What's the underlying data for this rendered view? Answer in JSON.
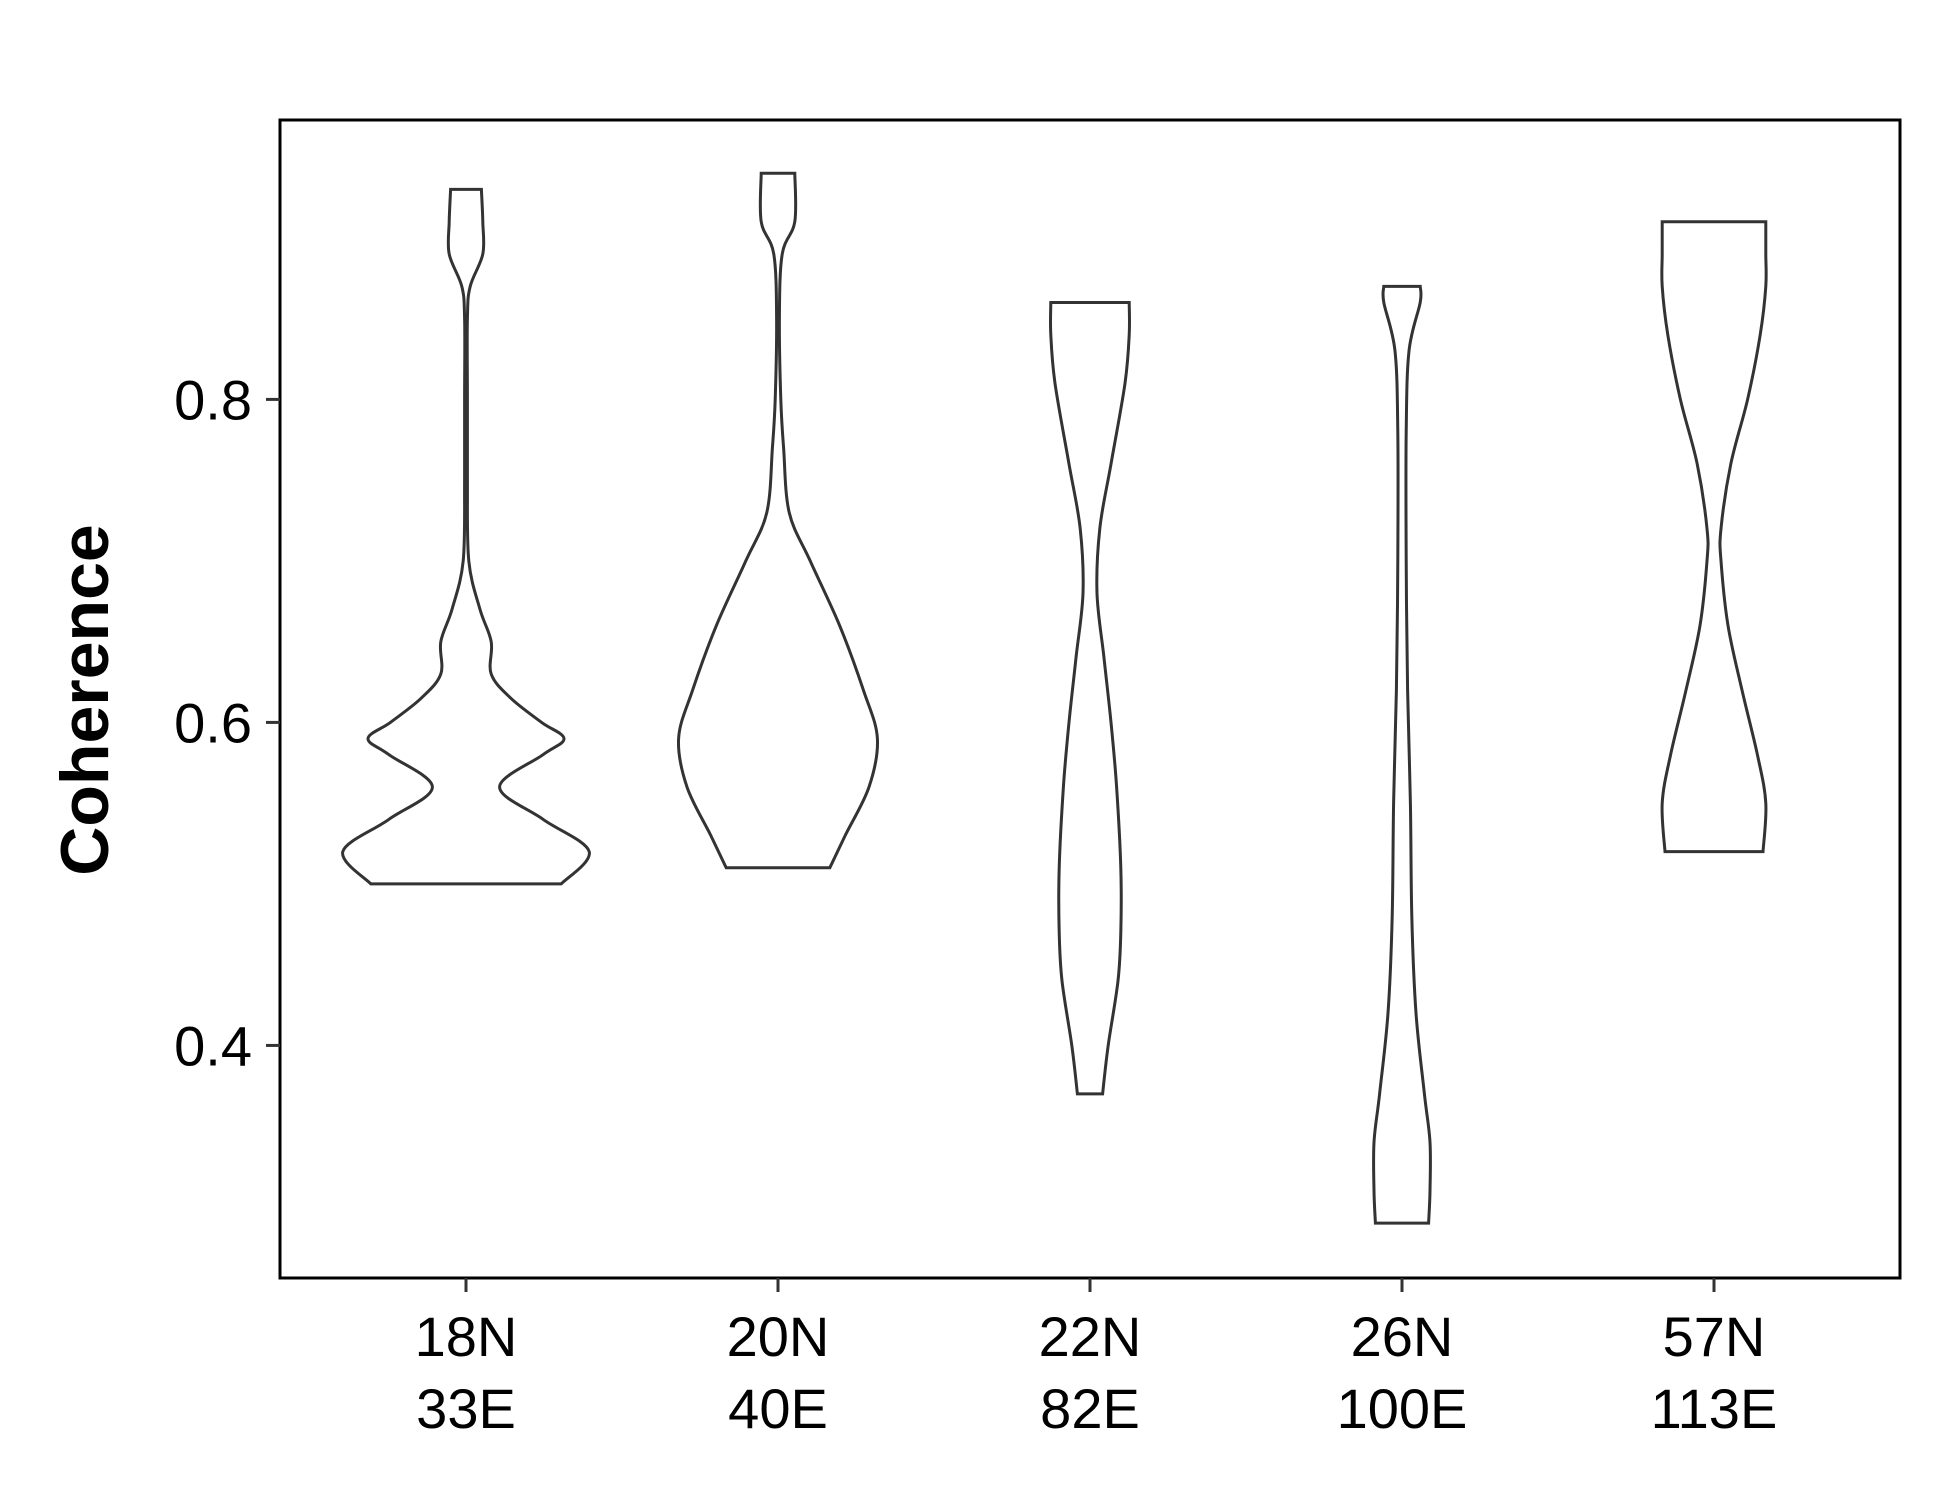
{
  "chart_data": {
    "type": "violin",
    "title": "",
    "xlabel": "",
    "ylabel": "Coherence",
    "ylim": [
      0.256,
      0.973
    ],
    "y_ticks": [
      "0.4",
      "0.6",
      "0.8"
    ],
    "grid": false,
    "legend": "none",
    "colors": {
      "outline": "#333333",
      "fill": "#ffffff",
      "axis": "#000000"
    },
    "categories": [
      {
        "line1": "18N",
        "line2": "33E"
      },
      {
        "line1": "20N",
        "line2": "40E"
      },
      {
        "line1": "22N",
        "line2": "82E"
      },
      {
        "line1": "26N",
        "line2": "100E"
      },
      {
        "line1": "57N",
        "line2": "113E"
      }
    ],
    "series": [
      {
        "category": "18N 33E",
        "min": 0.5,
        "max": 0.93,
        "profile": [
          [
            0.5,
            0.68
          ],
          [
            0.52,
            0.88
          ],
          [
            0.54,
            0.55
          ],
          [
            0.56,
            0.24
          ],
          [
            0.58,
            0.55
          ],
          [
            0.59,
            0.7
          ],
          [
            0.6,
            0.54
          ],
          [
            0.615,
            0.32
          ],
          [
            0.63,
            0.18
          ],
          [
            0.65,
            0.18
          ],
          [
            0.67,
            0.1
          ],
          [
            0.7,
            0.02
          ],
          [
            0.75,
            0.01
          ],
          [
            0.8,
            0.01
          ],
          [
            0.85,
            0.01
          ],
          [
            0.87,
            0.03
          ],
          [
            0.89,
            0.12
          ],
          [
            0.91,
            0.12
          ],
          [
            0.93,
            0.11
          ]
        ]
      },
      {
        "category": "20N 40E",
        "min": 0.51,
        "max": 0.94,
        "profile": [
          [
            0.51,
            0.37
          ],
          [
            0.53,
            0.48
          ],
          [
            0.56,
            0.65
          ],
          [
            0.59,
            0.71
          ],
          [
            0.62,
            0.61
          ],
          [
            0.66,
            0.44
          ],
          [
            0.7,
            0.23
          ],
          [
            0.73,
            0.08
          ],
          [
            0.77,
            0.04
          ],
          [
            0.8,
            0.02
          ],
          [
            0.85,
            0.01
          ],
          [
            0.89,
            0.03
          ],
          [
            0.91,
            0.12
          ],
          [
            0.94,
            0.12
          ]
        ]
      },
      {
        "category": "22N 82E",
        "min": 0.37,
        "max": 0.86,
        "profile": [
          [
            0.37,
            0.09
          ],
          [
            0.4,
            0.13
          ],
          [
            0.44,
            0.2
          ],
          [
            0.47,
            0.22
          ],
          [
            0.51,
            0.22
          ],
          [
            0.56,
            0.19
          ],
          [
            0.6,
            0.15
          ],
          [
            0.64,
            0.1
          ],
          [
            0.68,
            0.05
          ],
          [
            0.72,
            0.07
          ],
          [
            0.76,
            0.15
          ],
          [
            0.81,
            0.25
          ],
          [
            0.84,
            0.28
          ],
          [
            0.86,
            0.28
          ]
        ]
      },
      {
        "category": "26N 100E",
        "min": 0.29,
        "max": 0.87,
        "profile": [
          [
            0.29,
            0.19
          ],
          [
            0.31,
            0.2
          ],
          [
            0.34,
            0.2
          ],
          [
            0.37,
            0.16
          ],
          [
            0.42,
            0.1
          ],
          [
            0.48,
            0.07
          ],
          [
            0.55,
            0.06
          ],
          [
            0.62,
            0.04
          ],
          [
            0.7,
            0.03
          ],
          [
            0.78,
            0.03
          ],
          [
            0.83,
            0.05
          ],
          [
            0.86,
            0.13
          ],
          [
            0.87,
            0.13
          ]
        ]
      },
      {
        "category": "57N 113E",
        "min": 0.52,
        "max": 0.91,
        "profile": [
          [
            0.52,
            0.35
          ],
          [
            0.55,
            0.37
          ],
          [
            0.58,
            0.31
          ],
          [
            0.62,
            0.2
          ],
          [
            0.66,
            0.1
          ],
          [
            0.7,
            0.05
          ],
          [
            0.72,
            0.05
          ],
          [
            0.76,
            0.12
          ],
          [
            0.8,
            0.24
          ],
          [
            0.84,
            0.33
          ],
          [
            0.87,
            0.37
          ],
          [
            0.89,
            0.37
          ],
          [
            0.91,
            0.37
          ]
        ]
      }
    ]
  }
}
